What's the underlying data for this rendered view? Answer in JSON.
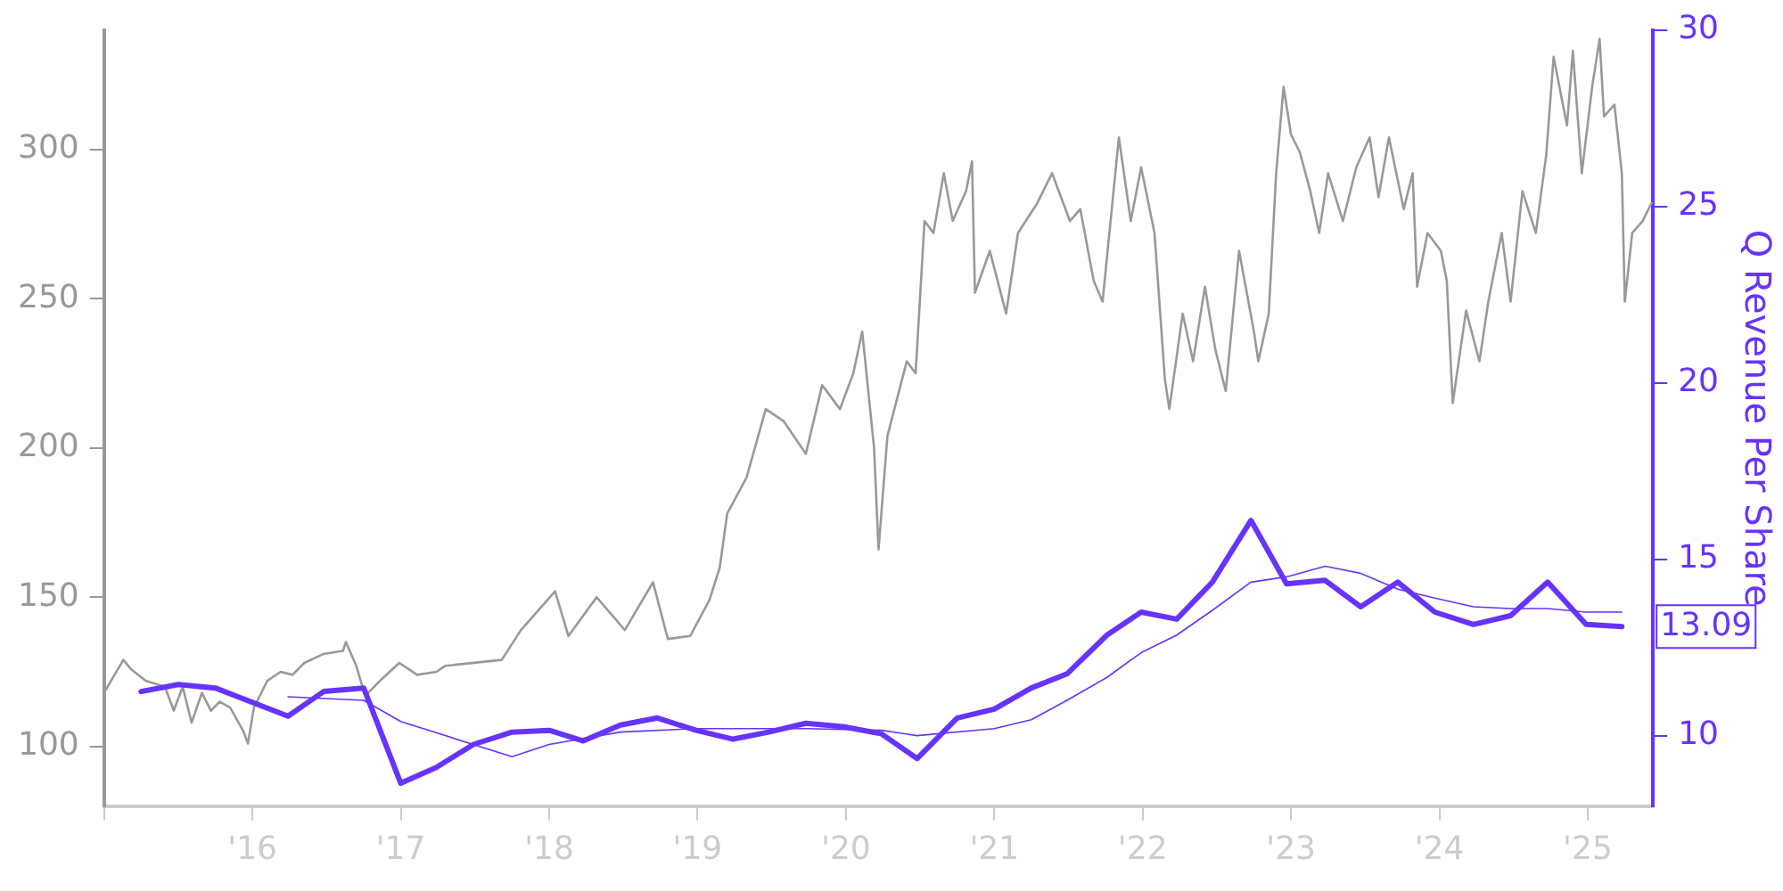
{
  "chart_data": {
    "type": "line",
    "y2label": "Q Revenue Per Share",
    "xlim": [
      2015.0,
      2025.44
    ],
    "xticks": [
      {
        "value": 2015,
        "label": null
      },
      {
        "value": 2016,
        "label": "'16"
      },
      {
        "value": 2017,
        "label": "'17"
      },
      {
        "value": 2018,
        "label": "'18"
      },
      {
        "value": 2019,
        "label": "'19"
      },
      {
        "value": 2020,
        "label": "'20"
      },
      {
        "value": 2021,
        "label": "'21"
      },
      {
        "value": 2022,
        "label": "'22"
      },
      {
        "value": 2023,
        "label": "'23"
      },
      {
        "value": 2024,
        "label": "'24"
      },
      {
        "value": 2025,
        "label": "'25"
      }
    ],
    "ylim": [
      80,
      340
    ],
    "yticks": [
      100,
      150,
      200,
      250,
      300
    ],
    "y2lim": [
      8,
      30
    ],
    "y2ticks": [
      10,
      15,
      20,
      25,
      30
    ],
    "grid": false,
    "legend": false,
    "marker": "none",
    "line_style": "solid",
    "series": [
      {
        "color": "#999999",
        "x": [
          2015.0,
          2015.13,
          2015.18,
          2015.28,
          2015.41,
          2015.47,
          2015.53,
          2015.59,
          2015.66,
          2015.72,
          2015.78,
          2015.85,
          2015.94,
          2015.97,
          2016.01,
          2016.1,
          2016.19,
          2016.27,
          2016.35,
          2016.48,
          2016.61,
          2016.63,
          2016.7,
          2016.76,
          2016.86,
          2016.99,
          2017.11,
          2017.24,
          2017.3,
          2017.68,
          2017.81,
          2018.04,
          2018.13,
          2018.32,
          2018.51,
          2018.7,
          2018.8,
          2018.95,
          2019.08,
          2019.15,
          2019.2,
          2019.33,
          2019.46,
          2019.58,
          2019.73,
          2019.84,
          2019.96,
          2020.05,
          2020.11,
          2020.19,
          2020.22,
          2020.28,
          2020.41,
          2020.47,
          2020.53,
          2020.59,
          2020.66,
          2020.72,
          2020.81,
          2020.85,
          2020.87,
          2020.97,
          2021.08,
          2021.16,
          2021.29,
          2021.39,
          2021.51,
          2021.58,
          2021.67,
          2021.73,
          2021.84,
          2021.92,
          2021.99,
          2022.08,
          2022.15,
          2022.18,
          2022.27,
          2022.34,
          2022.42,
          2022.49,
          2022.56,
          2022.65,
          2022.75,
          2022.78,
          2022.85,
          2022.9,
          2022.95,
          2023.0,
          2023.06,
          2023.13,
          2023.19,
          2023.25,
          2023.35,
          2023.44,
          2023.53,
          2023.59,
          2023.66,
          2023.76,
          2023.82,
          2023.85,
          2023.92,
          2024.01,
          2024.05,
          2024.09,
          2024.18,
          2024.27,
          2024.33,
          2024.42,
          2024.48,
          2024.56,
          2024.65,
          2024.72,
          2024.77,
          2024.86,
          2024.9,
          2024.96,
          2025.03,
          2025.08,
          2025.11,
          2025.18,
          2025.23,
          2025.25,
          2025.3,
          2025.37,
          2025.43
        ],
        "values": [
          118,
          129,
          126,
          122,
          120,
          112,
          120,
          108,
          118,
          112,
          115,
          113,
          105,
          101,
          113,
          122,
          125,
          124,
          128,
          131,
          132,
          135,
          127,
          117,
          122,
          128,
          124,
          125,
          127,
          129,
          139,
          152,
          137,
          150,
          139,
          155,
          136,
          137,
          149,
          160,
          178,
          190,
          213,
          209,
          198,
          221,
          213,
          225,
          239,
          200,
          166,
          204,
          229,
          225,
          276,
          272,
          292,
          276,
          286,
          296,
          252,
          266,
          245,
          272,
          282,
          292,
          276,
          280,
          256,
          249,
          304,
          276,
          294,
          272,
          223,
          213,
          245,
          229,
          254,
          233,
          219,
          266,
          239,
          229,
          245,
          292,
          321,
          305,
          299,
          286,
          272,
          292,
          276,
          294,
          304,
          284,
          304,
          280,
          292,
          254,
          272,
          266,
          256,
          215,
          246,
          229,
          249,
          272,
          249,
          286,
          272,
          298,
          331,
          308,
          333,
          292,
          321,
          337,
          311,
          315,
          292,
          249,
          272,
          276,
          282
        ]
      },
      {
        "color": "#6633ff",
        "axis": "y2",
        "x": [
          2015.25,
          2015.5,
          2015.75,
          2016.24,
          2016.48,
          2016.75,
          2017.0,
          2017.24,
          2017.49,
          2017.75,
          2018.0,
          2018.23,
          2018.48,
          2018.73,
          2018.99,
          2019.24,
          2019.48,
          2019.73,
          2019.99,
          2020.24,
          2020.48,
          2020.75,
          2021.0,
          2021.25,
          2021.49,
          2021.76,
          2021.99,
          2022.23,
          2022.47,
          2022.73,
          2022.97,
          2023.23,
          2023.47,
          2023.72,
          2023.97,
          2024.23,
          2024.48,
          2024.73,
          2024.99,
          2025.23
        ],
        "values": [
          11.25,
          11.45,
          11.35,
          10.55,
          11.25,
          11.35,
          8.65,
          9.1,
          9.75,
          10.1,
          10.15,
          9.85,
          10.3,
          10.5,
          10.15,
          9.9,
          10.1,
          10.35,
          10.25,
          10.05,
          9.35,
          10.5,
          10.75,
          11.35,
          11.75,
          12.85,
          13.5,
          13.3,
          14.35,
          16.1,
          14.3,
          14.4,
          13.65,
          14.35,
          13.5,
          13.15,
          13.4,
          14.35,
          13.15,
          13.09
        ],
        "value_labels": [
          null,
          null,
          null,
          null,
          null,
          null,
          null,
          null,
          null,
          null,
          null,
          null,
          null,
          null,
          null,
          null,
          null,
          null,
          null,
          null,
          null,
          null,
          null,
          null,
          null,
          null,
          null,
          null,
          null,
          null,
          null,
          null,
          null,
          null,
          null,
          null,
          null,
          null,
          null,
          "13.09"
        ]
      },
      {
        "color": "#6633ff",
        "axis": "y2",
        "x": [
          2016.24,
          2016.75,
          2017.0,
          2017.75,
          2018.0,
          2018.48,
          2018.99,
          2019.24,
          2019.73,
          2020.24,
          2020.48,
          2021.0,
          2021.25,
          2021.49,
          2021.76,
          2021.99,
          2022.23,
          2022.47,
          2022.73,
          2022.97,
          2023.23,
          2023.47,
          2023.72,
          2023.97,
          2024.23,
          2024.48,
          2024.73,
          2024.99,
          2025.23
        ],
        "values": [
          11.1,
          11.0,
          10.4,
          9.4,
          9.75,
          10.1,
          10.2,
          10.2,
          10.2,
          10.15,
          10.0,
          10.2,
          10.45,
          11.0,
          11.65,
          12.35,
          12.85,
          13.55,
          14.35,
          14.5,
          14.8,
          14.6,
          14.15,
          13.9,
          13.65,
          13.6,
          13.6,
          13.5,
          13.5
        ]
      }
    ]
  }
}
